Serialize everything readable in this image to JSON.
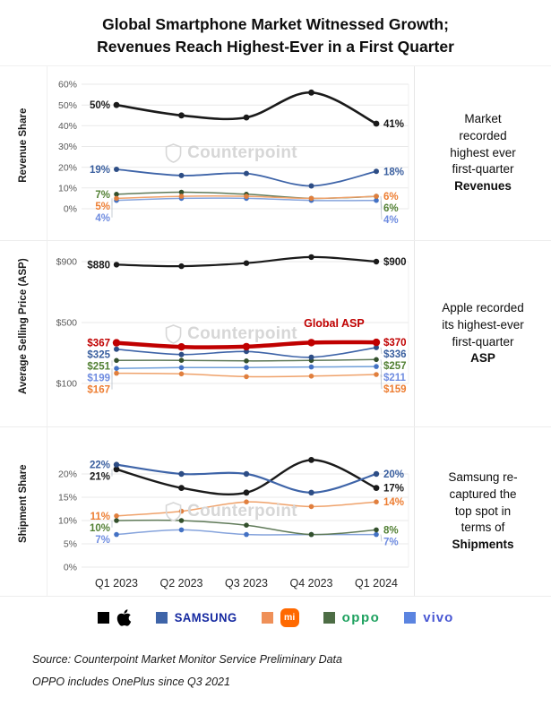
{
  "title_line1": "Global Smartphone Market Witnessed Growth;",
  "title_line2": "Revenues Reach Highest-Ever in a First Quarter",
  "watermark": "Counterpoint",
  "notes": [
    {
      "text": "Market recorded highest ever first-quarter",
      "bold": "Revenues"
    },
    {
      "text": "Apple recorded its highest-ever first-quarter",
      "bold": "ASP"
    },
    {
      "text": "Samsung re-captured the top spot in terms of",
      "bold": "Shipments"
    }
  ],
  "legend": [
    {
      "name": "Apple",
      "swatch": "#000000",
      "logo": "apple"
    },
    {
      "name": "Samsung",
      "swatch": "#3e64a8",
      "wordmark": "SAMSUNG",
      "wordmark_color": "#1428a0"
    },
    {
      "name": "Xiaomi",
      "swatch": "#ef9058",
      "badge_text": "mi",
      "badge_color": "#ff6900"
    },
    {
      "name": "OPPO",
      "swatch": "#4d6d45",
      "wordmark": "oppo",
      "wordmark_color": "#1ea15f"
    },
    {
      "name": "vivo",
      "swatch": "#5b84e0",
      "wordmark": "vivo",
      "wordmark_color": "#4857d3"
    }
  ],
  "source_line1": "Source: Counterpoint Market Monitor Service Preliminary Data",
  "source_line2": "OPPO includes OnePlus since Q3 2021",
  "chart_data": [
    {
      "type": "line",
      "title": "Revenue Share",
      "ylabel": "Revenue Share",
      "value_format": "percent",
      "ylim": [
        0,
        60
      ],
      "yticks": [
        0,
        10,
        20,
        30,
        40,
        50,
        60
      ],
      "grid": true,
      "legend_position": "bottom",
      "categories": [
        "Q1 2023",
        "Q2 2023",
        "Q3 2023",
        "Q4 2023",
        "Q1 2024"
      ],
      "series": [
        {
          "name": "Apple",
          "values": [
            50,
            45,
            44,
            56,
            41
          ],
          "color": "#1a1a1a",
          "marker_color": "#1a1a1a",
          "label_color": "#1a1a1a",
          "line_width": 2.6,
          "marker_r": 3.4
        },
        {
          "name": "Samsung",
          "values": [
            19,
            16,
            17,
            11,
            18
          ],
          "color": "#3e64a8",
          "marker_color": "#2d4d85",
          "label_color": "#3a5f9f",
          "line_width": 1.8,
          "marker_r": 3
        },
        {
          "name": "Xiaomi",
          "values": [
            5,
            6,
            6,
            5,
            6
          ],
          "color": "#efa26b",
          "marker_color": "#e07f3e",
          "label_color": "#ed7d31",
          "line_width": 1.5,
          "marker_r": 2.8
        },
        {
          "name": "OPPO",
          "values": [
            7,
            8,
            7,
            5,
            6
          ],
          "color": "#5f7a58",
          "marker_color": "#33502c",
          "label_color": "#538135",
          "line_width": 1.5,
          "marker_r": 2.8
        },
        {
          "name": "vivo",
          "values": [
            4,
            5,
            5,
            4,
            4
          ],
          "color": "#85a3dc",
          "marker_color": "#4472c4",
          "label_color": "#6f8ce0",
          "line_width": 1.5,
          "marker_r": 2.8
        }
      ]
    },
    {
      "type": "line",
      "title": "Average Selling Price (ASP)",
      "ylabel": "Average Selling Price (ASP)",
      "value_format": "dollar",
      "ylim": [
        100,
        900
      ],
      "yticks": [
        100,
        500,
        900
      ],
      "grid": true,
      "categories": [
        "Q1 2023",
        "Q2 2023",
        "Q3 2023",
        "Q4 2023",
        "Q1 2024"
      ],
      "series": [
        {
          "name": "Apple",
          "values": [
            880,
            870,
            890,
            930,
            900
          ],
          "color": "#1a1a1a",
          "marker_color": "#1a1a1a",
          "label_color": "#1a1a1a",
          "line_width": 2.2,
          "marker_r": 3.2
        },
        {
          "name": "Global ASP",
          "values": [
            367,
            340,
            342,
            368,
            370
          ],
          "color": "#c00000",
          "marker_color": "#c00000",
          "label_color": "#c00000",
          "line_width": 4.5,
          "marker_r": 4.2
        },
        {
          "name": "Samsung",
          "values": [
            325,
            290,
            310,
            272,
            336
          ],
          "color": "#3e64a8",
          "marker_color": "#2d4d85",
          "label_color": "#3a5f9f",
          "line_width": 1.6,
          "marker_r": 3
        },
        {
          "name": "OPPO",
          "values": [
            251,
            252,
            248,
            251,
            257
          ],
          "color": "#5f7a58",
          "marker_color": "#33502c",
          "label_color": "#538135",
          "line_width": 1.5,
          "marker_r": 2.8
        },
        {
          "name": "vivo",
          "values": [
            199,
            204,
            205,
            208,
            211
          ],
          "color": "#6f9fd9",
          "marker_color": "#4472c4",
          "label_color": "#6f8ce0",
          "line_width": 1.5,
          "marker_r": 2.8
        },
        {
          "name": "Xiaomi",
          "values": [
            167,
            163,
            145,
            148,
            159
          ],
          "color": "#efa26b",
          "marker_color": "#e07f3e",
          "label_color": "#ed7d31",
          "line_width": 1.5,
          "marker_r": 2.8
        }
      ],
      "annotations": [
        {
          "text": "Global ASP",
          "x": 3.35,
          "y": 470,
          "color": "#c00000"
        }
      ]
    },
    {
      "type": "line",
      "title": "Shipment Share",
      "ylabel": "Shipment Share",
      "value_format": "percent",
      "ylim": [
        0,
        20
      ],
      "yticks": [
        0,
        5,
        10,
        15,
        20
      ],
      "grid": true,
      "show_x_labels": true,
      "categories": [
        "Q1 2023",
        "Q2 2023",
        "Q3 2023",
        "Q4 2023",
        "Q1 2024"
      ],
      "series": [
        {
          "name": "Samsung",
          "values": [
            22,
            20,
            20,
            16,
            20
          ],
          "color": "#3e64a8",
          "marker_color": "#2d4d85",
          "label_color": "#3a5f9f",
          "line_width": 2.2,
          "marker_r": 3.2
        },
        {
          "name": "Apple",
          "values": [
            21,
            17,
            16,
            23,
            17
          ],
          "color": "#1a1a1a",
          "marker_color": "#1a1a1a",
          "label_color": "#1a1a1a",
          "line_width": 2.4,
          "marker_r": 3.4
        },
        {
          "name": "Xiaomi",
          "values": [
            11,
            12,
            14,
            13,
            14
          ],
          "color": "#efa26b",
          "marker_color": "#e07f3e",
          "label_color": "#ed7d31",
          "line_width": 1.5,
          "marker_r": 2.8
        },
        {
          "name": "OPPO",
          "values": [
            10,
            10,
            9,
            7,
            8
          ],
          "color": "#5f7a58",
          "marker_color": "#33502c",
          "label_color": "#538135",
          "line_width": 1.5,
          "marker_r": 2.8
        },
        {
          "name": "vivo",
          "values": [
            7,
            8,
            7,
            7,
            7
          ],
          "color": "#85a3dc",
          "marker_color": "#4472c4",
          "label_color": "#6f8ce0",
          "line_width": 1.5,
          "marker_r": 2.8
        }
      ]
    }
  ]
}
